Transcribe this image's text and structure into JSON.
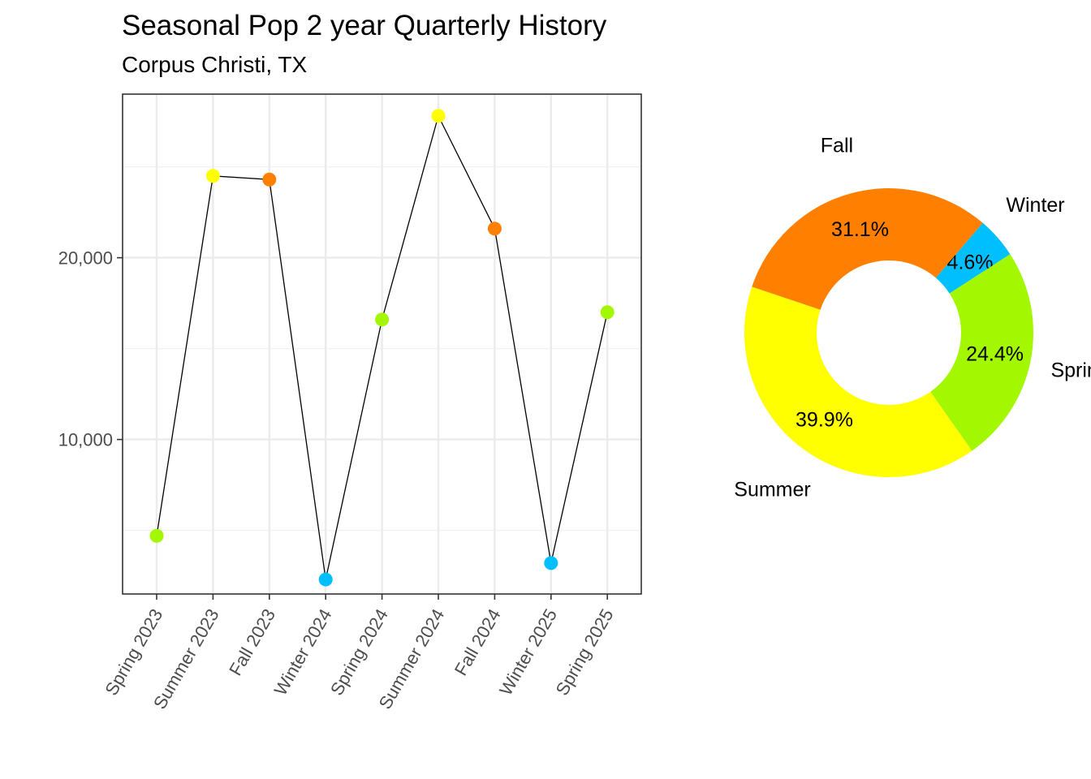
{
  "title": "Seasonal Pop 2 year Quarterly History",
  "subtitle": "Corpus Christi, TX",
  "colors": {
    "Spring": "#A3F700",
    "Summer": "#FFFF00",
    "Fall": "#FF8000",
    "Winter": "#00BFFF"
  },
  "chart_data": [
    {
      "type": "line",
      "categories": [
        "Spring 2023",
        "Summer 2023",
        "Fall 2023",
        "Winter 2024",
        "Spring 2024",
        "Summer 2024",
        "Fall 2024",
        "Winter 2025",
        "Spring 2025"
      ],
      "seasons": [
        "Spring",
        "Summer",
        "Fall",
        "Winter",
        "Spring",
        "Summer",
        "Fall",
        "Winter",
        "Spring"
      ],
      "values": [
        4700,
        24500,
        24300,
        2300,
        16600,
        27800,
        21600,
        3200,
        17000
      ],
      "yticks": [
        10000,
        20000
      ],
      "ytick_labels": [
        "10,000",
        "20,000"
      ],
      "ylim": [
        1500,
        29000
      ],
      "grid": true,
      "xlabel": "",
      "ylabel": ""
    },
    {
      "type": "pie",
      "donut": true,
      "labels": [
        "Winter",
        "Spring",
        "Summer",
        "Fall"
      ],
      "values": [
        4.6,
        24.4,
        39.9,
        31.1
      ],
      "value_labels": [
        "4.6%",
        "24.4%",
        "39.9%",
        "31.1%"
      ]
    }
  ]
}
